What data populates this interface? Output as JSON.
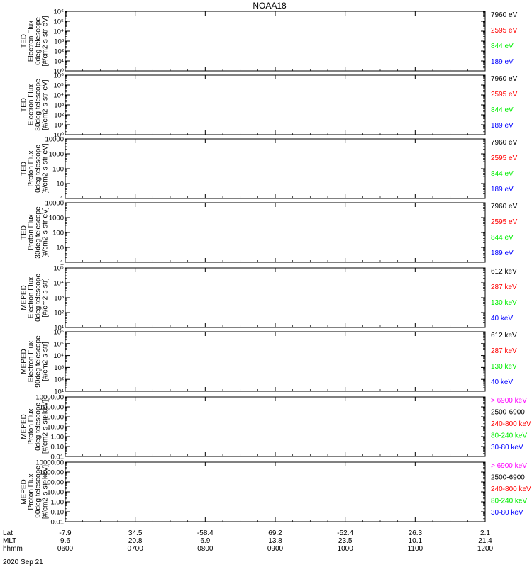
{
  "title": "NOAA18",
  "date_label": "2020 Sep 21",
  "footer": {
    "row_labels": [
      "Lat",
      "MLT",
      "hhmm"
    ],
    "columns": [
      {
        "lat": "-7.9",
        "mlt": "9.6",
        "hhmm": "0600"
      },
      {
        "lat": "34.5",
        "mlt": "20.8",
        "hhmm": "0700"
      },
      {
        "lat": "-58.4",
        "mlt": "6.9",
        "hhmm": "0800"
      },
      {
        "lat": "69.2",
        "mlt": "13.8",
        "hhmm": "0900"
      },
      {
        "lat": "-52.4",
        "mlt": "23.5",
        "hhmm": "1000"
      },
      {
        "lat": "26.3",
        "mlt": "10.1",
        "hhmm": "1100"
      },
      {
        "lat": "2.1",
        "mlt": "21.4",
        "hhmm": "1200"
      }
    ]
  },
  "colors": {
    "black": "#000000",
    "red": "#ff0000",
    "green": "#00ee00",
    "blue": "#0000ff",
    "magenta": "#ff00ff"
  },
  "chart_data": [
    {
      "type": "line",
      "ylabel": [
        "TED",
        "Electron Flux",
        "0deg telescope",
        "[#/cm2-s-str-eV]"
      ],
      "yscale": "log",
      "ylim": [
        1,
        1000000
      ],
      "yticks": [
        {
          "v": 1,
          "label": "10⁰"
        },
        {
          "v": 10,
          "label": "10¹"
        },
        {
          "v": 100,
          "label": "10²"
        },
        {
          "v": 1000,
          "label": "10³"
        },
        {
          "v": 10000,
          "label": "10⁴"
        },
        {
          "v": 100000,
          "label": "10⁵"
        },
        {
          "v": 1000000,
          "label": "10⁶"
        }
      ],
      "legend": [
        {
          "label": "7960 eV",
          "color": "#000000"
        },
        {
          "label": "2595 eV",
          "color": "#ff0000"
        },
        {
          "label": "844 eV",
          "color": "#00ee00"
        },
        {
          "label": "189 eV",
          "color": "#0000ff"
        }
      ]
    },
    {
      "type": "line",
      "ylabel": [
        "TED",
        "Electron Flux",
        "30deg telescope",
        "[#/cm2-s-str-eV]"
      ],
      "yscale": "log",
      "ylim": [
        1,
        1000000
      ],
      "yticks": [
        {
          "v": 1,
          "label": "10⁰"
        },
        {
          "v": 10,
          "label": "10¹"
        },
        {
          "v": 100,
          "label": "10²"
        },
        {
          "v": 1000,
          "label": "10³"
        },
        {
          "v": 10000,
          "label": "10⁴"
        },
        {
          "v": 100000,
          "label": "10⁵"
        },
        {
          "v": 1000000,
          "label": "10⁶"
        }
      ],
      "legend": [
        {
          "label": "7960 eV",
          "color": "#000000"
        },
        {
          "label": "2595 eV",
          "color": "#ff0000"
        },
        {
          "label": "844 eV",
          "color": "#00ee00"
        },
        {
          "label": "189 eV",
          "color": "#0000ff"
        }
      ]
    },
    {
      "type": "line",
      "ylabel": [
        "TED",
        "Proton Flux",
        "0deg telescope",
        "[#/cm2-s-str-eV]"
      ],
      "yscale": "log",
      "ylim": [
        1,
        10000
      ],
      "yticks": [
        {
          "v": 1,
          "label": "1"
        },
        {
          "v": 10,
          "label": "10"
        },
        {
          "v": 100,
          "label": "100"
        },
        {
          "v": 1000,
          "label": "1000"
        },
        {
          "v": 10000,
          "label": "10000"
        }
      ],
      "legend": [
        {
          "label": "7960 eV",
          "color": "#000000"
        },
        {
          "label": "2595 eV",
          "color": "#ff0000"
        },
        {
          "label": "844 eV",
          "color": "#00ee00"
        },
        {
          "label": "189 eV",
          "color": "#0000ff"
        }
      ]
    },
    {
      "type": "line",
      "ylabel": [
        "TED",
        "Proton Flux",
        "30deg telescope",
        "[#/cm2-s-str-eV]"
      ],
      "yscale": "log",
      "ylim": [
        1,
        10000
      ],
      "yticks": [
        {
          "v": 1,
          "label": "1"
        },
        {
          "v": 10,
          "label": "10"
        },
        {
          "v": 100,
          "label": "100"
        },
        {
          "v": 1000,
          "label": "1000"
        },
        {
          "v": 10000,
          "label": "10000"
        }
      ],
      "legend": [
        {
          "label": "7960 eV",
          "color": "#000000"
        },
        {
          "label": "2595 eV",
          "color": "#ff0000"
        },
        {
          "label": "844 eV",
          "color": "#00ee00"
        },
        {
          "label": "189 eV",
          "color": "#0000ff"
        }
      ]
    },
    {
      "type": "line",
      "ylabel": [
        "MEPED",
        "Electron Flux",
        "0deg telescope",
        "[#/cm2-s-str]"
      ],
      "yscale": "log",
      "ylim": [
        10,
        100000
      ],
      "yticks": [
        {
          "v": 10,
          "label": "10¹"
        },
        {
          "v": 100,
          "label": "10²"
        },
        {
          "v": 1000,
          "label": "10³"
        },
        {
          "v": 10000,
          "label": "10⁴"
        },
        {
          "v": 100000,
          "label": "10⁵"
        }
      ],
      "legend": [
        {
          "label": "612 keV",
          "color": "#000000"
        },
        {
          "label": "287 keV",
          "color": "#ff0000"
        },
        {
          "label": "130 keV",
          "color": "#00ee00"
        },
        {
          "label": "40 keV",
          "color": "#0000ff"
        }
      ]
    },
    {
      "type": "line",
      "ylabel": [
        "MEPED",
        "Electron Flux",
        "90deg telescope",
        "[#/cm2-s-str]"
      ],
      "yscale": "log",
      "ylim": [
        10,
        1000000
      ],
      "yticks": [
        {
          "v": 10,
          "label": "10¹"
        },
        {
          "v": 100,
          "label": "10²"
        },
        {
          "v": 1000,
          "label": "10³"
        },
        {
          "v": 10000,
          "label": "10⁴"
        },
        {
          "v": 100000,
          "label": "10⁵"
        },
        {
          "v": 1000000,
          "label": "10⁶"
        }
      ],
      "legend": [
        {
          "label": "612 keV",
          "color": "#000000"
        },
        {
          "label": "287 keV",
          "color": "#ff0000"
        },
        {
          "label": "130 keV",
          "color": "#00ee00"
        },
        {
          "label": "40 keV",
          "color": "#0000ff"
        }
      ]
    },
    {
      "type": "line",
      "ylabel": [
        "MEPED",
        "Proton Flux",
        "0deg telescope",
        "[#/cm2-s-str-keV]"
      ],
      "yscale": "log",
      "ylim": [
        0.01,
        10000
      ],
      "yticks": [
        {
          "v": 0.01,
          "label": "0.01"
        },
        {
          "v": 0.1,
          "label": "0.10"
        },
        {
          "v": 1,
          "label": "1.00"
        },
        {
          "v": 10,
          "label": "10.00"
        },
        {
          "v": 100,
          "label": "100.00"
        },
        {
          "v": 1000,
          "label": "1000.00"
        },
        {
          "v": 10000,
          "label": "10000.00"
        }
      ],
      "legend": [
        {
          "label": "> 6900 keV",
          "color": "#ff00ff"
        },
        {
          "label": "2500-6900",
          "color": "#000000"
        },
        {
          "label": "240-800 keV",
          "color": "#ff0000"
        },
        {
          "label": "80-240 keV",
          "color": "#00ee00"
        },
        {
          "label": "30-80 keV",
          "color": "#0000ff"
        }
      ]
    },
    {
      "type": "line",
      "ylabel": [
        "MEPED",
        "Proton Flux",
        "90deg telescope",
        "[#/cm2-s-str-keV]"
      ],
      "yscale": "log",
      "ylim": [
        0.01,
        10000
      ],
      "yticks": [
        {
          "v": 0.01,
          "label": "0.01"
        },
        {
          "v": 0.1,
          "label": "0.10"
        },
        {
          "v": 1,
          "label": "1.00"
        },
        {
          "v": 10,
          "label": "10.00"
        },
        {
          "v": 100,
          "label": "100.00"
        },
        {
          "v": 1000,
          "label": "1000.00"
        },
        {
          "v": 10000,
          "label": "10000.00"
        }
      ],
      "legend": [
        {
          "label": "> 6900 keV",
          "color": "#ff00ff"
        },
        {
          "label": "2500-6900",
          "color": "#000000"
        },
        {
          "label": "240-800 keV",
          "color": "#ff0000"
        },
        {
          "label": "80-240 keV",
          "color": "#00ee00"
        },
        {
          "label": "30-80 keV",
          "color": "#0000ff"
        }
      ]
    }
  ]
}
